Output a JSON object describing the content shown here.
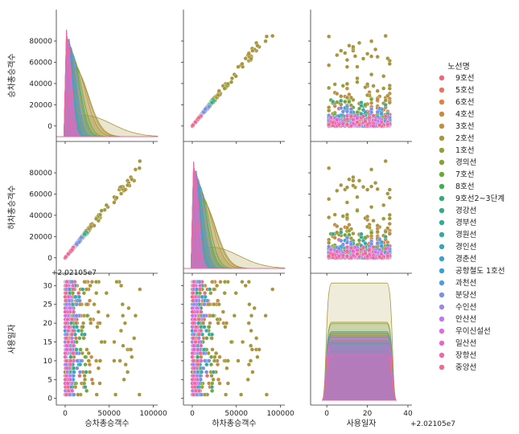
{
  "chart_data": {
    "type": "pairplot",
    "variables": [
      "승차총승객수",
      "하차총승객수",
      "사용일자"
    ],
    "axis_labels": {
      "승차총승객수": "승차총승객수",
      "하차총승객수": "하차총승객수",
      "사용일자": "사용일자"
    },
    "offset_label": "+2.02105e7",
    "ranges": {
      "승차총승객수": [
        -10000,
        105000
      ],
      "하차총승객수": [
        -10000,
        105000
      ],
      "사용일자": [
        -0.5,
        32
      ]
    },
    "y_ticks": {
      "승차총승객수": [
        0,
        20000,
        40000,
        60000,
        80000
      ],
      "하차총승객수": [
        0,
        20000,
        40000,
        60000,
        80000
      ],
      "사용일자": [
        0,
        5,
        10,
        15,
        20,
        25,
        30
      ]
    },
    "x_ticks": {
      "승차총승객수": [
        0,
        50000,
        100000
      ],
      "하차총승객수": [
        0,
        50000,
        100000
      ],
      "사용일자": [
        0,
        20,
        40
      ]
    },
    "x_tick_labels": {
      "승차총승객수": [
        "0",
        "50000",
        "100000"
      ],
      "하차총승객수": [
        "0",
        "50000",
        "100000"
      ],
      "사용일자": [
        "0",
        "20",
        "40"
      ]
    },
    "diag_x_range_date": [
      -8,
      42
    ],
    "legend_title": "노선명",
    "legend_position": "right",
    "series": [
      {
        "name": "9호선",
        "color": "#e8697a",
        "max_ride": 20000
      },
      {
        "name": "5호선",
        "color": "#e8725a",
        "max_ride": 24000
      },
      {
        "name": "6호선",
        "color": "#e08044",
        "max_ride": 16000
      },
      {
        "name": "4호선",
        "color": "#c98a42",
        "max_ride": 38000
      },
      {
        "name": "3호선",
        "color": "#bb9046",
        "max_ride": 44000
      },
      {
        "name": "2호선",
        "color": "#a8963f",
        "max_ride": 90000
      },
      {
        "name": "1호선",
        "color": "#9a9c38",
        "max_ride": 42000
      },
      {
        "name": "경의선",
        "color": "#86a332",
        "max_ride": 14000
      },
      {
        "name": "7호선",
        "color": "#6aaa3a",
        "max_ride": 30000
      },
      {
        "name": "8호선",
        "color": "#3fae4d",
        "max_ride": 12000
      },
      {
        "name": "9호선2~3단계",
        "color": "#32ad72",
        "max_ride": 10000
      },
      {
        "name": "경강선",
        "color": "#33ab88",
        "max_ride": 5000
      },
      {
        "name": "경부선",
        "color": "#35aa98",
        "max_ride": 26000
      },
      {
        "name": "경원선",
        "color": "#36a8a6",
        "max_ride": 14000
      },
      {
        "name": "경인선",
        "color": "#37a6b5",
        "max_ride": 18000
      },
      {
        "name": "경춘선",
        "color": "#39a3c6",
        "max_ride": 6000
      },
      {
        "name": "공항철도 1호선",
        "color": "#3c9fd8",
        "max_ride": 12000
      },
      {
        "name": "과천선",
        "color": "#5599e0",
        "max_ride": 10000
      },
      {
        "name": "분당선",
        "color": "#7b8fe8",
        "max_ride": 20000
      },
      {
        "name": "수인선",
        "color": "#9f85ea",
        "max_ride": 8000
      },
      {
        "name": "안산선",
        "color": "#bc79e8",
        "max_ride": 9000
      },
      {
        "name": "우이신설선",
        "color": "#d86fdd",
        "max_ride": 6000
      },
      {
        "name": "일산선",
        "color": "#e866c6",
        "max_ride": 10000
      },
      {
        "name": "장항선",
        "color": "#ee68ab",
        "max_ride": 4000
      },
      {
        "name": "중앙선",
        "color": "#ec6b93",
        "max_ride": 10000
      }
    ]
  }
}
